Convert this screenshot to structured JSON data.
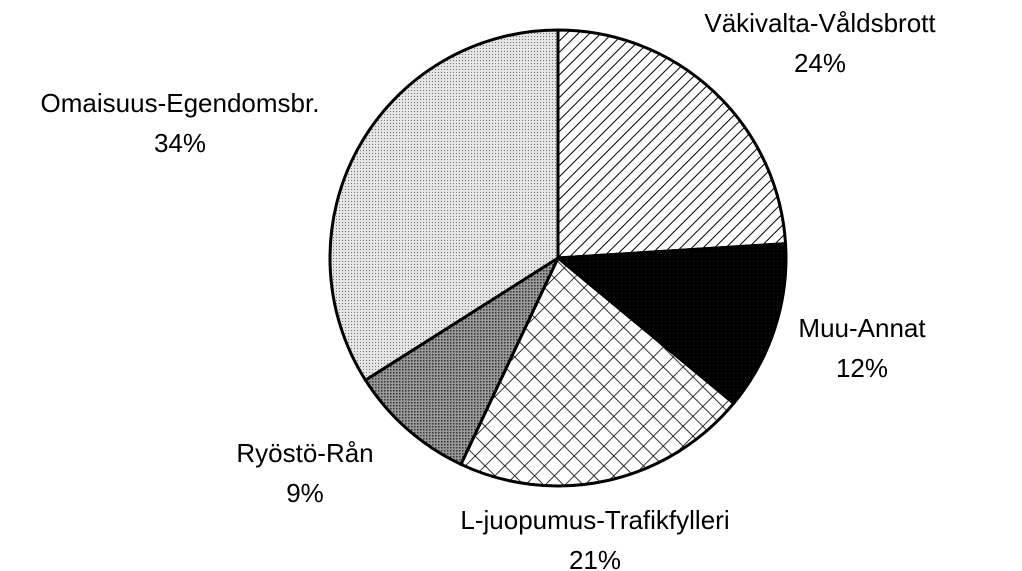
{
  "chart_data": {
    "type": "pie",
    "categories": [
      "Väkivalta-Våldsbrott",
      "Muu-Annat",
      "L-juopumus-Trafikfylleri",
      "Ryöstö-Rån",
      "Omaisuus-Egendomsbr."
    ],
    "values": [
      24,
      12,
      21,
      9,
      34
    ],
    "value_labels": [
      "24%",
      "12%",
      "21%",
      "9%",
      "34%"
    ]
  }
}
